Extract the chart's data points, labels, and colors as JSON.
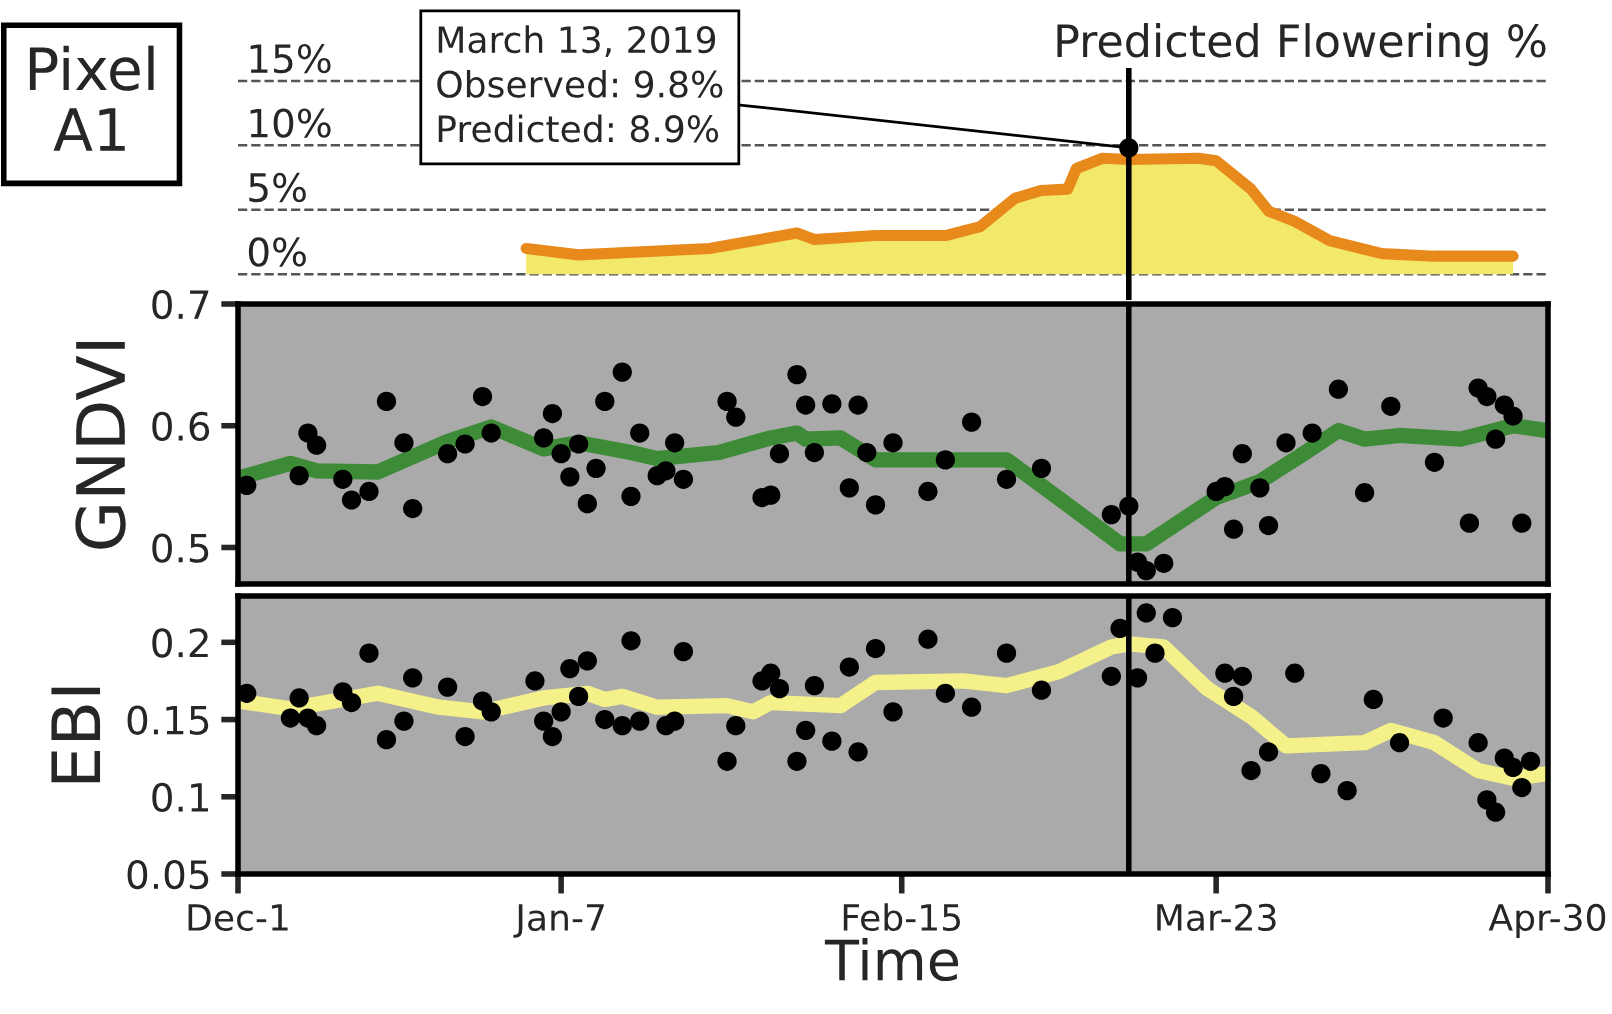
{
  "chart_data": [
    {
      "type": "area",
      "title": "Predicted Flowering %",
      "xlim": [
        "2018-12-01",
        "2019-04-30"
      ],
      "ylim": [
        -2,
        16
      ],
      "yticks": [
        {
          "value": 0,
          "label": "0%"
        },
        {
          "value": 5,
          "label": "5%"
        },
        {
          "value": 10,
          "label": "10%"
        },
        {
          "value": 15,
          "label": "15%"
        }
      ],
      "grid": "y",
      "tick_labels": "y",
      "series": [
        {
          "type": "area",
          "color": "#f2e86a",
          "x": [
            "2019-01-03",
            "2019-01-09",
            "2019-01-24",
            "2019-01-29",
            "2019-02-03",
            "2019-02-05",
            "2019-02-12",
            "2019-02-20",
            "2019-02-24",
            "2019-02-28",
            "2019-03-03",
            "2019-03-06",
            "2019-03-07",
            "2019-03-10",
            "2019-03-13",
            "2019-03-21",
            "2019-03-23",
            "2019-03-27",
            "2019-03-29",
            "2019-04-01",
            "2019-04-05",
            "2019-04-11",
            "2019-04-17",
            "2019-04-26"
          ],
          "values": [
            2.0,
            1.5,
            2.0,
            2.6,
            3.2,
            2.7,
            3.0,
            3.0,
            3.7,
            5.9,
            6.5,
            6.6,
            8.2,
            9.0,
            8.9,
            9.0,
            8.8,
            6.6,
            4.9,
            4.1,
            2.6,
            1.6,
            1.4,
            1.4
          ]
        },
        {
          "type": "scatter",
          "color": "#000000",
          "x": [
            "2019-03-13"
          ],
          "values": [
            9.8
          ]
        }
      ],
      "ref_lines": [
        {
          "axis": "x",
          "value": "2019-03-13",
          "color": "#000000"
        }
      ],
      "annotations": [
        "Pixel\nA1",
        {
          "text": "March 13, 2019\nObserved: 9.8%\nPredicted: 8.9%",
          "x": "2019-03-13",
          "y": 9.8
        }
      ]
    },
    {
      "type": "scatter",
      "ylabel": "GNDVI",
      "xlim": [
        "2018-12-01",
        "2019-04-30"
      ],
      "ylim": [
        0.47,
        0.7
      ],
      "yticks": [
        0.5,
        0.6,
        0.7
      ],
      "tick_labels": "y",
      "series": [
        {
          "type": "scatter",
          "color": "#000000",
          "x": [
            "2018-12-02",
            "2018-12-08",
            "2018-12-09",
            "2018-12-10",
            "2018-12-13",
            "2018-12-14",
            "2018-12-16",
            "2018-12-18",
            "2018-12-20",
            "2018-12-21",
            "2018-12-25",
            "2018-12-27",
            "2018-12-29",
            "2018-12-30",
            "2019-01-05",
            "2019-01-06",
            "2019-01-07",
            "2019-01-08",
            "2019-01-09",
            "2019-01-10",
            "2019-01-11",
            "2019-01-12",
            "2019-01-14",
            "2019-01-15",
            "2019-01-16",
            "2019-01-18",
            "2019-01-19",
            "2019-01-20",
            "2019-01-21",
            "2019-01-26",
            "2019-01-27",
            "2019-01-30",
            "2019-01-31",
            "2019-02-01",
            "2019-02-03",
            "2019-02-04",
            "2019-02-05",
            "2019-02-07",
            "2019-02-09",
            "2019-02-10",
            "2019-02-11",
            "2019-02-12",
            "2019-02-14",
            "2019-02-18",
            "2019-02-20",
            "2019-02-23",
            "2019-02-27",
            "2019-03-03",
            "2019-03-11",
            "2019-03-13",
            "2019-03-14",
            "2019-03-15",
            "2019-03-17",
            "2019-03-23",
            "2019-03-24",
            "2019-03-25",
            "2019-03-26",
            "2019-03-28",
            "2019-03-29",
            "2019-03-31",
            "2019-04-03",
            "2019-04-06",
            "2019-04-09",
            "2019-04-12",
            "2019-04-17",
            "2019-04-21",
            "2019-04-22",
            "2019-04-23",
            "2019-04-24",
            "2019-04-25",
            "2019-04-26",
            "2019-04-27"
          ],
          "values": [
            0.551,
            0.559,
            0.594,
            0.584,
            0.556,
            0.539,
            0.546,
            0.62,
            0.586,
            0.532,
            0.577,
            0.585,
            0.624,
            0.594,
            0.59,
            0.61,
            0.577,
            0.558,
            0.585,
            0.536,
            0.565,
            0.62,
            0.644,
            0.542,
            0.594,
            0.559,
            0.563,
            0.586,
            0.556,
            0.62,
            0.607,
            0.541,
            0.543,
            0.577,
            0.642,
            0.617,
            0.578,
            0.618,
            0.549,
            0.617,
            0.578,
            0.535,
            0.586,
            0.546,
            0.572,
            0.603,
            0.556,
            0.565,
            0.527,
            0.534,
            0.488,
            0.481,
            0.487,
            0.546,
            0.55,
            0.515,
            0.577,
            0.549,
            0.518,
            0.586,
            0.594,
            0.63,
            0.545,
            0.616,
            0.57,
            0.52,
            0.631,
            0.624,
            0.589,
            0.617,
            0.608,
            0.52
          ]
        },
        {
          "type": "line",
          "color": "#3d8b37",
          "x": [
            "2018-12-01",
            "2018-12-07",
            "2018-12-10",
            "2018-12-17",
            "2018-12-25",
            "2018-12-30",
            "2019-01-05",
            "2019-01-09",
            "2019-01-15",
            "2019-01-18",
            "2019-01-25",
            "2019-01-31",
            "2019-02-03",
            "2019-02-04",
            "2019-02-08",
            "2019-02-12",
            "2019-02-27",
            "2019-03-06",
            "2019-03-12",
            "2019-03-15",
            "2019-03-23",
            "2019-03-28",
            "2019-04-02",
            "2019-04-06",
            "2019-04-09",
            "2019-04-13",
            "2019-04-20",
            "2019-04-26",
            "2019-04-30"
          ],
          "values": [
            0.557,
            0.569,
            0.563,
            0.562,
            0.587,
            0.599,
            0.581,
            0.586,
            0.578,
            0.573,
            0.578,
            0.59,
            0.594,
            0.589,
            0.59,
            0.572,
            0.572,
            0.535,
            0.503,
            0.503,
            0.541,
            0.554,
            0.577,
            0.596,
            0.589,
            0.592,
            0.589,
            0.6,
            0.596
          ]
        }
      ],
      "ref_lines": [
        {
          "axis": "x",
          "value": "2019-03-13",
          "color": "#000000"
        }
      ]
    },
    {
      "type": "scatter",
      "ylabel": "EBI",
      "xlabel": "Time",
      "xlim": [
        "2018-12-01",
        "2019-04-30"
      ],
      "ylim": [
        0.05,
        0.23
      ],
      "xticks": [
        {
          "value": "2018-12-01",
          "label": "Dec-1"
        },
        {
          "value": "2019-01-07",
          "label": "Jan-7"
        },
        {
          "value": "2019-02-15",
          "label": "Feb-15"
        },
        {
          "value": "2019-03-23",
          "label": "Mar-23"
        },
        {
          "value": "2019-04-30",
          "label": "Apr-30"
        }
      ],
      "yticks": [
        0.05,
        0.1,
        0.15,
        0.2
      ],
      "series": [
        {
          "type": "scatter",
          "color": "#000000",
          "x": [
            "2018-12-02",
            "2018-12-07",
            "2018-12-08",
            "2018-12-09",
            "2018-12-10",
            "2018-12-13",
            "2018-12-14",
            "2018-12-16",
            "2018-12-18",
            "2018-12-20",
            "2018-12-21",
            "2018-12-25",
            "2018-12-27",
            "2018-12-29",
            "2018-12-30",
            "2019-01-04",
            "2019-01-05",
            "2019-01-06",
            "2019-01-07",
            "2019-01-08",
            "2019-01-09",
            "2019-01-10",
            "2019-01-12",
            "2019-01-14",
            "2019-01-15",
            "2019-01-16",
            "2019-01-19",
            "2019-01-20",
            "2019-01-21",
            "2019-01-26",
            "2019-01-27",
            "2019-01-30",
            "2019-01-31",
            "2019-02-01",
            "2019-02-03",
            "2019-02-04",
            "2019-02-05",
            "2019-02-07",
            "2019-02-09",
            "2019-02-10",
            "2019-02-12",
            "2019-02-14",
            "2019-02-18",
            "2019-02-20",
            "2019-02-23",
            "2019-02-27",
            "2019-03-03",
            "2019-03-11",
            "2019-03-12",
            "2019-03-14",
            "2019-03-15",
            "2019-03-16",
            "2019-03-18",
            "2019-03-24",
            "2019-03-25",
            "2019-03-26",
            "2019-03-27",
            "2019-03-29",
            "2019-04-01",
            "2019-04-04",
            "2019-04-07",
            "2019-04-10",
            "2019-04-13",
            "2019-04-18",
            "2019-04-22",
            "2019-04-23",
            "2019-04-24",
            "2019-04-25",
            "2019-04-26",
            "2019-04-27",
            "2019-04-28"
          ],
          "values": [
            0.167,
            0.151,
            0.164,
            0.151,
            0.146,
            0.168,
            0.161,
            0.193,
            0.137,
            0.149,
            0.177,
            0.171,
            0.139,
            0.162,
            0.155,
            0.175,
            0.149,
            0.139,
            0.155,
            0.183,
            0.165,
            0.188,
            0.15,
            0.146,
            0.201,
            0.149,
            0.146,
            0.149,
            0.194,
            0.123,
            0.146,
            0.175,
            0.18,
            0.17,
            0.123,
            0.143,
            0.172,
            0.136,
            0.184,
            0.129,
            0.196,
            0.155,
            0.202,
            0.167,
            0.158,
            0.193,
            0.169,
            0.178,
            0.209,
            0.177,
            0.219,
            0.193,
            0.216,
            0.18,
            0.165,
            0.178,
            0.117,
            0.129,
            0.18,
            0.115,
            0.104,
            0.163,
            0.135,
            0.151,
            0.135,
            0.098,
            0.09,
            0.125,
            0.119,
            0.106,
            0.123
          ]
        },
        {
          "type": "line",
          "color": "#f4f08a",
          "x": [
            "2018-12-01",
            "2018-12-07",
            "2018-12-17",
            "2018-12-24",
            "2018-12-29",
            "2019-01-05",
            "2019-01-10",
            "2019-01-12",
            "2019-01-14",
            "2019-01-18",
            "2019-01-26",
            "2019-01-29",
            "2019-01-31",
            "2019-02-08",
            "2019-02-12",
            "2019-02-22",
            "2019-02-27",
            "2019-03-05",
            "2019-03-11",
            "2019-03-13",
            "2019-03-17",
            "2019-03-22",
            "2019-03-27",
            "2019-03-31",
            "2019-04-09",
            "2019-04-12",
            "2019-04-17",
            "2019-04-22",
            "2019-04-26",
            "2019-04-30"
          ],
          "values": [
            0.162,
            0.157,
            0.167,
            0.158,
            0.155,
            0.164,
            0.167,
            0.163,
            0.165,
            0.158,
            0.159,
            0.155,
            0.161,
            0.159,
            0.174,
            0.175,
            0.172,
            0.181,
            0.197,
            0.199,
            0.197,
            0.17,
            0.152,
            0.133,
            0.135,
            0.143,
            0.135,
            0.117,
            0.112,
            0.115
          ]
        }
      ],
      "ref_lines": [
        {
          "axis": "x",
          "value": "2019-03-13",
          "color": "#000000"
        }
      ]
    }
  ]
}
